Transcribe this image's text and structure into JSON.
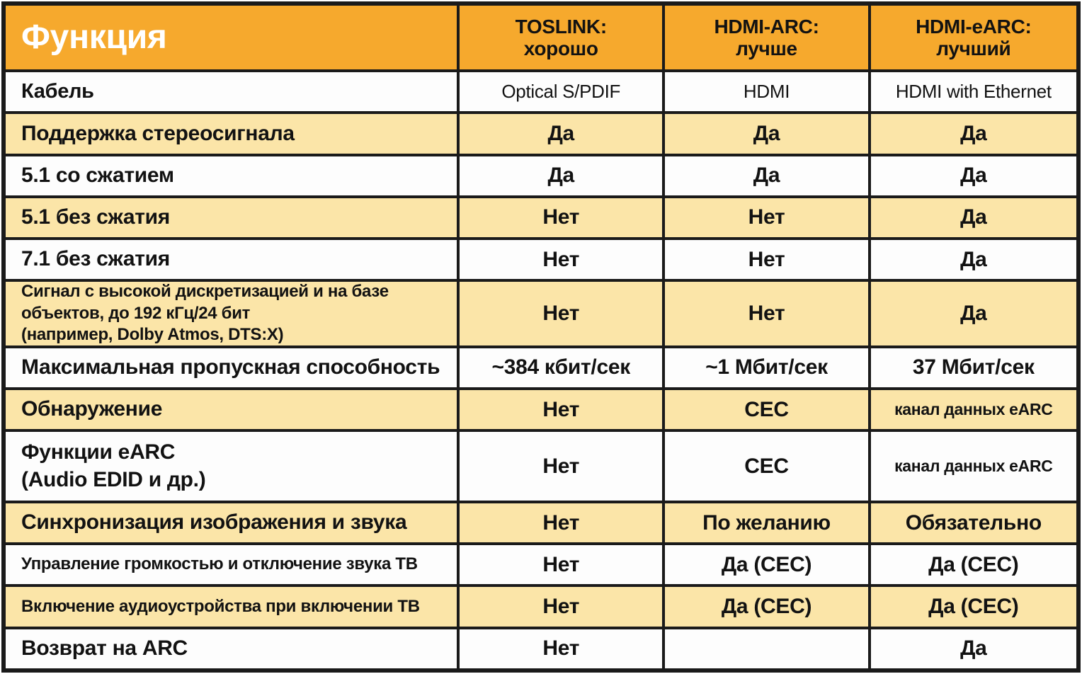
{
  "header": {
    "function_label": "Функция",
    "columns": [
      {
        "name": "TOSLINK:",
        "grade": "хорошо"
      },
      {
        "name": "HDMI-ARC:",
        "grade": "лучше"
      },
      {
        "name": "HDMI-eARC:",
        "grade": "лучший"
      }
    ]
  },
  "rows": [
    {
      "feature": "Кабель",
      "toslink": "Optical S/PDIF",
      "hdmi_arc": "HDMI",
      "hdmi_earc": "HDMI with Ethernet"
    },
    {
      "feature": "Поддержка стереосигнала",
      "toslink": "Да",
      "hdmi_arc": "Да",
      "hdmi_earc": "Да"
    },
    {
      "feature": "5.1 со сжатием",
      "toslink": "Да",
      "hdmi_arc": "Да",
      "hdmi_earc": "Да"
    },
    {
      "feature": "5.1 без сжатия",
      "toslink": "Нет",
      "hdmi_arc": "Нет",
      "hdmi_earc": "Да"
    },
    {
      "feature": "7.1 без сжатия",
      "toslink": "Нет",
      "hdmi_arc": "Нет",
      "hdmi_earc": "Да"
    },
    {
      "feature": "Сигнал с высокой дискретизацией и на базе\nобъектов, до 192 кГц/24 бит\n(например, Dolby Atmos, DTS:X)",
      "toslink": "Нет",
      "hdmi_arc": "Нет",
      "hdmi_earc": "Да"
    },
    {
      "feature": "Максимальная пропускная способность",
      "toslink": "~384 кбит/сек",
      "hdmi_arc": "~1 Мбит/сек",
      "hdmi_earc": "37 Мбит/сек"
    },
    {
      "feature": "Обнаружение",
      "toslink": "Нет",
      "hdmi_arc": "CEC",
      "hdmi_earc": "канал данных eARC"
    },
    {
      "feature": "Функции eARC\n(Audio EDID и др.)",
      "toslink": "Нет",
      "hdmi_arc": "CEC",
      "hdmi_earc": "канал данных eARC"
    },
    {
      "feature": "Синхронизация изображения и звука",
      "toslink": "Нет",
      "hdmi_arc": "По желанию",
      "hdmi_earc": "Обязательно"
    },
    {
      "feature": "Управление громкостью и отключение звука ТВ",
      "toslink": "Нет",
      "hdmi_arc": "Да (CEC)",
      "hdmi_earc": "Да (CEC)"
    },
    {
      "feature": "Включение аудиоустройства при включении ТВ",
      "toslink": "Нет",
      "hdmi_arc": "Да (CEC)",
      "hdmi_earc": "Да (CEC)"
    },
    {
      "feature": "Возврат на ARC",
      "toslink": "Нет",
      "hdmi_arc": "",
      "hdmi_earc": "Да"
    }
  ],
  "colors": {
    "header_bg": "#f6a92d",
    "cream_row_bg": "#fbe5a8",
    "white_row_bg": "#fdfdfd",
    "border": "#1a1a1a",
    "text": "#121212",
    "header_function_text": "#ffffff"
  }
}
